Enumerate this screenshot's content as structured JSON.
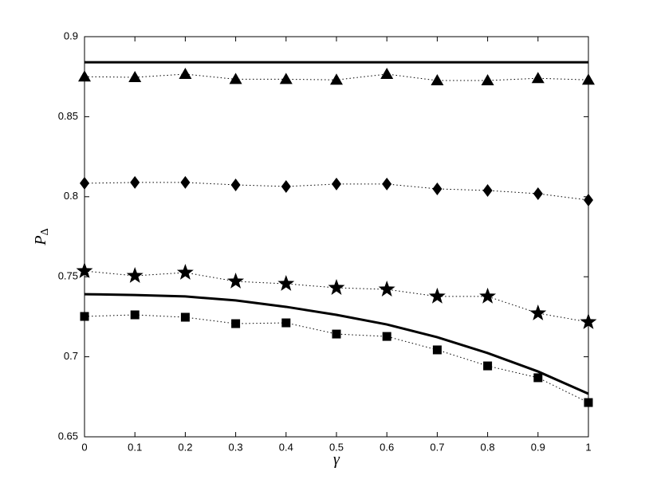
{
  "chart_data": {
    "type": "line",
    "xlabel": "γ",
    "ylabel": {
      "base": "P",
      "sub": "Δ"
    },
    "x": [
      0,
      0.1,
      0.2,
      0.3,
      0.4,
      0.5,
      0.6,
      0.7,
      0.8,
      0.9,
      1
    ],
    "series": [
      {
        "color": "#000000",
        "linestyle": "solid",
        "marker": "none",
        "values": [
          0.884,
          0.884,
          0.884,
          0.884,
          0.884,
          0.884,
          0.884,
          0.884,
          0.884,
          0.884,
          0.884
        ]
      },
      {
        "color": "#000000",
        "linestyle": "dotted",
        "marker": "triangle",
        "values": [
          0.875,
          0.8746,
          0.8766,
          0.8734,
          0.8734,
          0.873,
          0.8766,
          0.8726,
          0.8726,
          0.874,
          0.873
        ]
      },
      {
        "color": "#000000",
        "linestyle": "dotted",
        "marker": "diamond",
        "values": [
          0.8084,
          0.8089,
          0.8089,
          0.8074,
          0.8064,
          0.8079,
          0.8079,
          0.8049,
          0.8039,
          0.8019,
          0.7979
        ]
      },
      {
        "color": "#000000",
        "linestyle": "dotted",
        "marker": "star",
        "values": [
          0.7536,
          0.7506,
          0.7526,
          0.7471,
          0.7456,
          0.7431,
          0.7421,
          0.7377,
          0.7377,
          0.7272,
          0.7217
        ]
      },
      {
        "color": "#000000",
        "linestyle": "solid",
        "marker": "none",
        "values": [
          0.7391,
          0.7386,
          0.7377,
          0.7352,
          0.7312,
          0.7262,
          0.7202,
          0.7122,
          0.7023,
          0.6908,
          0.6769
        ]
      },
      {
        "color": "#000000",
        "linestyle": "dotted",
        "marker": "square",
        "values": [
          0.7252,
          0.7262,
          0.7247,
          0.7207,
          0.7212,
          0.7142,
          0.7127,
          0.7043,
          0.6943,
          0.6869,
          0.6714
        ]
      }
    ],
    "xlim": [
      0,
      1
    ],
    "xticks": [
      0,
      0.1,
      0.2,
      0.3,
      0.4,
      0.5,
      0.6,
      0.7,
      0.8,
      0.9,
      1
    ],
    "ylim": [
      0.65,
      0.9
    ],
    "yticks": [
      0.65,
      0.7,
      0.75,
      0.8,
      0.85,
      0.9
    ],
    "grid": false
  }
}
